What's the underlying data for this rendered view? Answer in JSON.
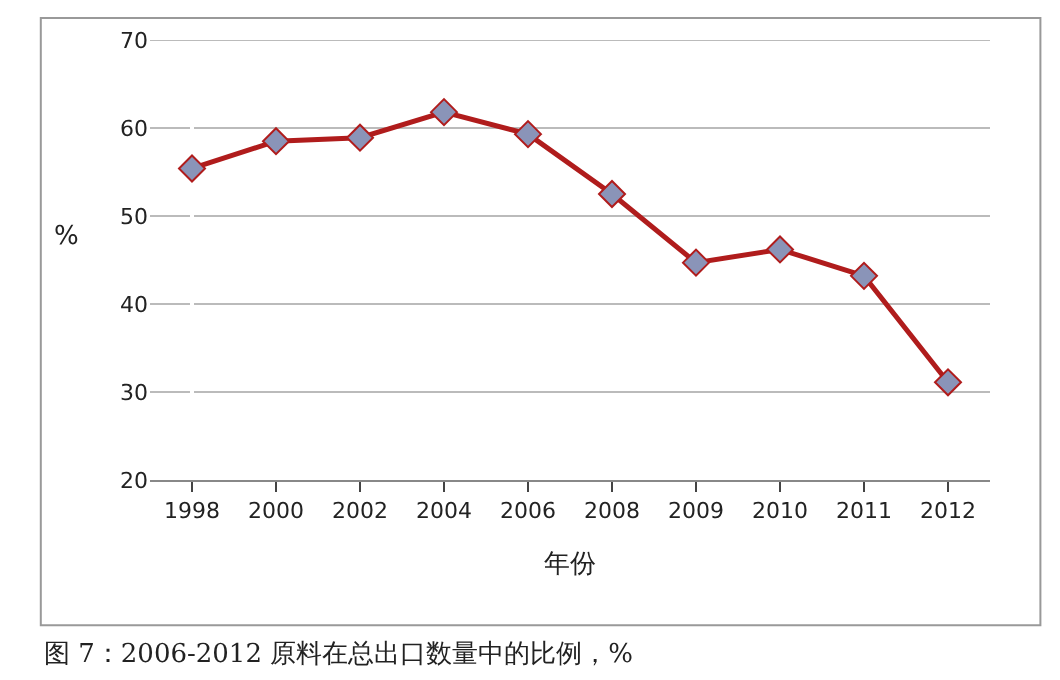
{
  "chart_data": {
    "type": "line",
    "xlabel": "年份",
    "ylabel": "%",
    "categories": [
      "1998",
      "2000",
      "2002",
      "2004",
      "2006",
      "2008",
      "2009",
      "2010",
      "2011",
      "2012"
    ],
    "series": [
      {
        "color": "#b01c1c",
        "values": [
          55.4,
          58.5,
          58.9,
          61.8,
          59.3,
          52.5,
          44.7,
          46.2,
          43.2,
          31.1
        ]
      }
    ],
    "ylim": [
      20,
      70
    ],
    "yticks": [
      20,
      30,
      40,
      50,
      60,
      70
    ],
    "grid": "y",
    "legend": false,
    "marker": "diamond",
    "line_style": "solid",
    "annotations": [
      "图 7：2006-2012 原料在总出口数量中的比例，%"
    ]
  }
}
